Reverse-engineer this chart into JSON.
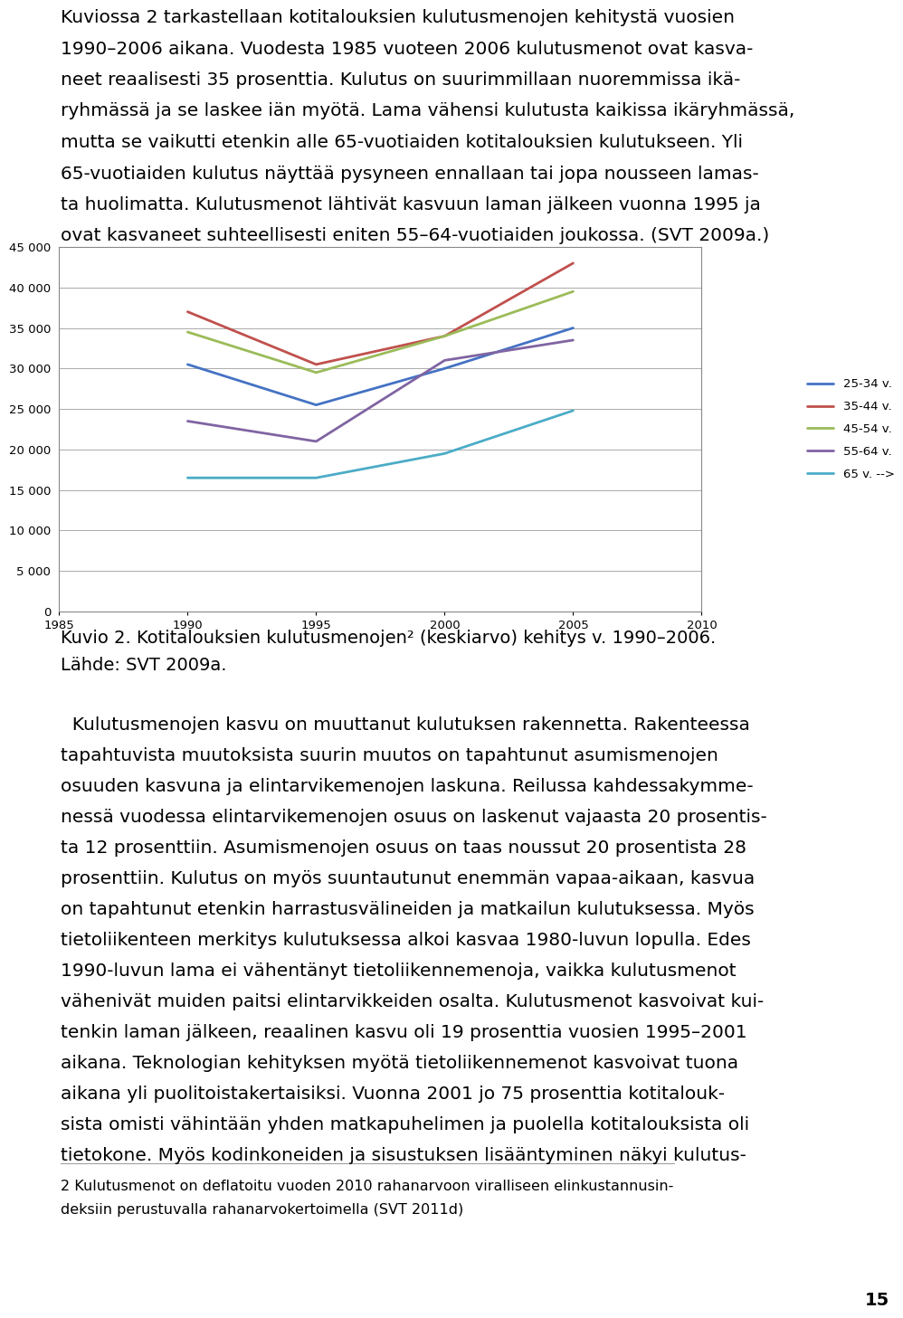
{
  "page_bg": "#FFFFFF",
  "text_color": "#000000",
  "font_family": "DejaVu Sans",
  "para1": "Kuviossa 2 tarkastellaan kotitalouksien kulutusmenojen kehitystä vuosien 1990–2006 aikana. Vuodesta 1985 vuoteen 2006 kulutusmenot ovat kasva-neet reaalisesti 35 prosenttia. Kulutus on suurimmillaan nuoremmissa ikä-ryhmässä ja se laskee iän myötä. Lama vähensi kulutusta kaikissa ikäryhmässä, mutta se vaikutti etenkin alle 65-vuotiaiden kotitalouksien kulutukseen. Yli 65-vuotiaiden kulutus näyttää pysyneen ennallaan tai jopa nousseen lamas-ta huolimatta. Kulutusmenot lähtivät kasvuun laman jälkeen vuonna 1995 ja ovat kasvaneet suhteellisesti eniten 55–64-vuotiaiden joukossa. (SVT 2009a.)",
  "caption1": "Kuvio 2. Kotitalouksien kulutusmenojen² (keskiarvo) kehitys v. 1990–2006.",
  "caption2": "Lähde: SVT 2009a.",
  "para2": "  Kulutusmenojen kasvu on muuttanut kulutuksen rakennetta. Rakenteessa tapahtuvista muutoksista suurin muutos on tapahtunut asumismenojen osuuden kasvuna ja elintarvikemenojen laskuna. Reilussa kahdessakymme-nessä vuodessa elintarvikemenojen osuus on laskenut vajaasta 20 prosentis-ta 12 prosenttiin. Asumismenojen osuus on taas noussut 20 prosentista 28 prosenttiin. Kulutus on myös suuntautunut enemmän vapaa-aikaan, kasvua on tapahtunut etenkin harrastuvälineiden ja matkailun kulutuksessa. Myös tietoliikenteen merkitys kulutuksessa alkoi kasvaa 1980-luvun lopulla. Edes 1990-luvun lama ei vähentänyt tietoliikennemenoja, vaikka kulutusmenot vähenivät muiden paitsi elintarvikkeiden osalta. Kulutusmenot kasvoivat kui-tenkin laman jälkeen, reaalinen kasvu oli 19 prosenttia vuosien 1995–2001 aikana. Teknologian kehityksen myötä tietoliikennemenot kasvoivat tuona aikana yli puolitoistakertaisiksi. Vuonna 2001 jo 75 prosenttia kotitalouk-sista omisti vähintään yhden matkapuhelimen ja puolella kotitalouksista oli tietokone. Myös kodinkoneiden ja sisustuksen lisääntyminen näkyi kulutus-",
  "footnote": "2 Kulutusmenot on deflatoitu vuoden 2010 rahanarvoon viralliseen elinkustannusin-\ndeksiin perustuvalla rahanarvokertoimella (SVT 2011d)",
  "page_num": "15",
  "years": [
    1985,
    1990,
    1995,
    2000,
    2005,
    2010
  ],
  "series": [
    {
      "label": "25-34 v.",
      "color": "#4472C4",
      "values": [
        null,
        30500,
        25500,
        30000,
        35000,
        null
      ]
    },
    {
      "label": "35-44 v.",
      "color": "#C0504D",
      "values": [
        null,
        37000,
        30500,
        34000,
        43000,
        null
      ]
    },
    {
      "label": "45-54 v.",
      "color": "#9BBB59",
      "values": [
        null,
        34500,
        29500,
        34000,
        39500,
        null
      ]
    },
    {
      "label": "55-64 v.",
      "color": "#8064A2",
      "values": [
        null,
        23500,
        21000,
        31000,
        33500,
        null
      ]
    },
    {
      "label": "65 v. -->",
      "color": "#4BACC6",
      "values": [
        null,
        16500,
        16500,
        19500,
        24800,
        null
      ]
    }
  ],
  "ylim": [
    0,
    45000
  ],
  "yticks": [
    0,
    5000,
    10000,
    15000,
    20000,
    25000,
    30000,
    35000,
    40000,
    45000
  ],
  "xticks": [
    1985,
    1990,
    1995,
    2000,
    2005,
    2010
  ],
  "grid_color": "#AAAAAA",
  "chart_border_color": "#888888",
  "text_fontsize": 14.5,
  "caption_fontsize": 14.0,
  "footnote_fontsize": 11.5
}
